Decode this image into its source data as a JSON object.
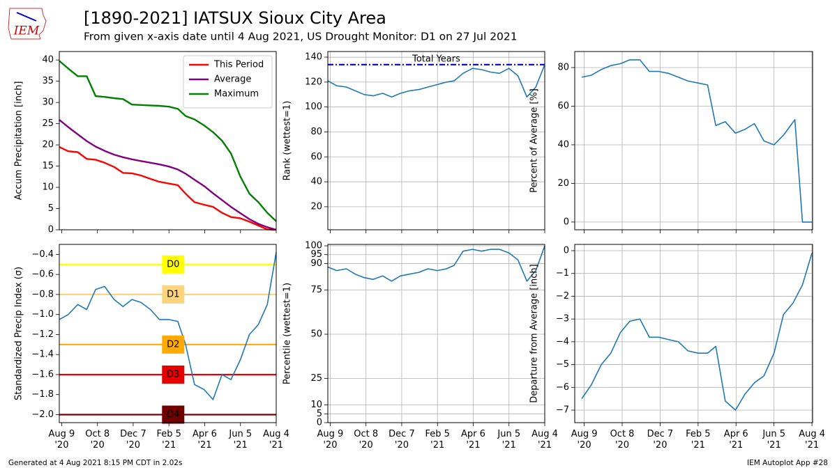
{
  "header": {
    "logo": "IEM",
    "title": "[1890-2021] IATSUX Sioux City Area",
    "subtitle": "From given x-axis date until 4 Aug 2021, US Drought Monitor: D1 on 27 Jul 2021"
  },
  "footer": {
    "left": "Generated at 4 Aug 2021 8:15 PM CDT in 2.02s",
    "right": "IEM Autoplot App #28"
  },
  "chart_data": [
    {
      "type": "line",
      "y_label": "Accum Precipitation [inch]",
      "grid": false,
      "legend": "upper right",
      "xlim": [
        "2020-08-05",
        "2021-08-04"
      ],
      "ylim": [
        0,
        42
      ],
      "xticks": [
        "2020-08-09",
        "2020-10-08",
        "2020-12-07",
        "2021-02-05",
        "2021-04-06",
        "2021-06-05",
        "2021-08-04"
      ],
      "yticks": [
        0,
        5,
        10,
        15,
        20,
        25,
        30,
        35,
        40
      ],
      "x": [
        "2020-08-05",
        "2020-08-20",
        "2020-09-05",
        "2020-09-20",
        "2020-10-05",
        "2020-10-20",
        "2020-11-05",
        "2020-11-20",
        "2020-12-05",
        "2020-12-20",
        "2021-01-05",
        "2021-01-20",
        "2021-02-05",
        "2021-02-20",
        "2021-03-05",
        "2021-03-20",
        "2021-04-05",
        "2021-04-20",
        "2021-05-05",
        "2021-05-20",
        "2021-06-05",
        "2021-06-20",
        "2021-07-05",
        "2021-07-20",
        "2021-08-04"
      ],
      "series": [
        {
          "name": "This Period",
          "color": "#ff0000",
          "values": [
            19.5,
            18.5,
            18.3,
            16.7,
            16.5,
            15.8,
            14.8,
            13.4,
            13.3,
            12.8,
            12.0,
            11.3,
            10.9,
            10.5,
            8.5,
            6.5,
            5.9,
            5.4,
            4.0,
            3.0,
            2.7,
            1.9,
            1.0,
            0.1,
            0
          ]
        },
        {
          "name": "Average",
          "color": "#800080",
          "values": [
            25.9,
            24.2,
            22.5,
            20.9,
            19.6,
            18.6,
            17.7,
            17.1,
            16.6,
            16.2,
            15.8,
            15.4,
            14.9,
            14.2,
            13.2,
            11.8,
            10.3,
            8.6,
            7.0,
            5.4,
            3.9,
            2.5,
            1.4,
            0.6,
            0
          ]
        },
        {
          "name": "Maximum",
          "color": "#008000",
          "values": [
            39.8,
            38.0,
            36.2,
            36.2,
            31.5,
            31.3,
            31.0,
            30.8,
            29.5,
            29.4,
            29.3,
            29.2,
            29.0,
            28.5,
            26.8,
            26.0,
            24.6,
            23.0,
            21.0,
            18.0,
            12.5,
            8.5,
            6.5,
            4.0,
            2.0
          ]
        }
      ]
    },
    {
      "type": "line",
      "y_label": "Rank (wettest=1)",
      "grid": true,
      "xlim": [
        "2020-08-05",
        "2021-08-04"
      ],
      "ylim": [
        1.5,
        144.5
      ],
      "xticks": [
        "2020-08-09",
        "2020-10-08",
        "2020-12-07",
        "2021-02-05",
        "2021-04-06",
        "2021-06-05",
        "2021-08-04"
      ],
      "yticks": [
        20,
        40,
        60,
        80,
        100,
        120,
        140
      ],
      "reference_lines": [
        {
          "value": 134,
          "label": "Total Years",
          "color": "#0000cc",
          "style": "dashdot",
          "text_color": "#000000"
        }
      ],
      "x": [
        "2020-08-05",
        "2020-08-20",
        "2020-09-05",
        "2020-09-20",
        "2020-10-05",
        "2020-10-20",
        "2020-11-05",
        "2020-11-20",
        "2020-12-05",
        "2020-12-20",
        "2021-01-05",
        "2021-01-20",
        "2021-02-05",
        "2021-02-20",
        "2021-03-05",
        "2021-03-20",
        "2021-04-05",
        "2021-04-20",
        "2021-05-05",
        "2021-05-20",
        "2021-06-05",
        "2021-06-20",
        "2021-07-05",
        "2021-07-20",
        "2021-08-04"
      ],
      "series": [
        {
          "color": "#1f77b4",
          "values": [
            121,
            117,
            116,
            113,
            110,
            109,
            111,
            108,
            111,
            113,
            114,
            116,
            118,
            120,
            121,
            127,
            131,
            130,
            128,
            127,
            131,
            125,
            108,
            116,
            134
          ]
        }
      ]
    },
    {
      "type": "line",
      "y_label": "Percent of Average [%]",
      "grid": true,
      "xlim": [
        "2020-07-25",
        "2021-08-05"
      ],
      "ylim": [
        -4,
        88.3
      ],
      "xticks": [
        "2020-08-09",
        "2020-10-08",
        "2020-12-07",
        "2021-02-05",
        "2021-04-06",
        "2021-06-05",
        "2021-08-04"
      ],
      "yticks": [
        0,
        20,
        40,
        60,
        80
      ],
      "x": [
        "2020-08-05",
        "2020-08-20",
        "2020-09-05",
        "2020-09-20",
        "2020-10-05",
        "2020-10-20",
        "2020-11-05",
        "2020-11-20",
        "2020-12-05",
        "2020-12-20",
        "2021-01-05",
        "2021-01-20",
        "2021-02-05",
        "2021-02-20",
        "2021-03-05",
        "2021-03-20",
        "2021-04-05",
        "2021-04-20",
        "2021-05-05",
        "2021-05-20",
        "2021-06-05",
        "2021-06-20",
        "2021-07-08",
        "2021-07-20",
        "2021-08-04"
      ],
      "series": [
        {
          "color": "#1f77b4",
          "values": [
            75,
            76,
            79,
            81,
            82,
            84,
            84,
            78,
            78,
            77,
            75,
            73,
            72,
            71,
            50,
            52,
            46,
            48,
            51,
            42,
            40,
            45,
            53,
            0,
            0
          ]
        }
      ]
    },
    {
      "type": "line",
      "y_label": "Standardized Precip Index (σ)",
      "grid": false,
      "xlim": [
        "2020-08-05",
        "2021-08-04"
      ],
      "ylim": [
        -2.08,
        -0.3
      ],
      "xticks": [
        {
          "value": "2020-08-09",
          "label": "Aug 9\n'20"
        },
        {
          "value": "2020-10-08",
          "label": "Oct 8\n'20"
        },
        {
          "value": "2020-12-07",
          "label": "Dec 7\n'20"
        },
        {
          "value": "2021-02-05",
          "label": "Feb 5\n'21"
        },
        {
          "value": "2021-04-06",
          "label": "Apr 6\n'21"
        },
        {
          "value": "2021-06-05",
          "label": "Jun 5\n'21"
        },
        {
          "value": "2021-08-04",
          "label": "Aug 4\n'21"
        }
      ],
      "yticks": [
        {
          "value": -2.0,
          "label": "−2.0"
        },
        {
          "value": -1.8,
          "label": "−1.8"
        },
        {
          "value": -1.6,
          "label": "−1.6"
        },
        {
          "value": -1.4,
          "label": "−1.4"
        },
        {
          "value": -1.2,
          "label": "−1.2"
        },
        {
          "value": -1.0,
          "label": "−1.0"
        },
        {
          "value": -0.8,
          "label": "−0.8"
        },
        {
          "value": -0.6,
          "label": "−0.6"
        },
        {
          "value": -0.4,
          "label": "−0.4"
        }
      ],
      "reference_lines": [
        {
          "value": -0.5,
          "label": "D0",
          "color": "#ffff00",
          "text_color": "#000000"
        },
        {
          "value": -0.8,
          "label": "D1",
          "color": "#fcd37f",
          "text_color": "#000000"
        },
        {
          "value": -1.3,
          "label": "D2",
          "color": "#ffaa00",
          "text_color": "#000000"
        },
        {
          "value": -1.6,
          "label": "D3",
          "color": "#e60000",
          "text_color": "#ffffff"
        },
        {
          "value": -2.0,
          "label": "D4",
          "color": "#730000",
          "text_color": "#ffffff"
        }
      ],
      "x": [
        "2020-08-05",
        "2020-08-20",
        "2020-09-05",
        "2020-09-20",
        "2020-10-05",
        "2020-10-20",
        "2020-11-05",
        "2020-11-20",
        "2020-12-05",
        "2020-12-20",
        "2021-01-05",
        "2021-01-20",
        "2021-02-05",
        "2021-02-20",
        "2021-03-05",
        "2021-03-20",
        "2021-04-05",
        "2021-04-20",
        "2021-05-05",
        "2021-05-20",
        "2021-06-05",
        "2021-06-20",
        "2021-07-05",
        "2021-07-20",
        "2021-08-04"
      ],
      "series": [
        {
          "color": "#1f77b4",
          "values": [
            -1.05,
            -1.0,
            -0.9,
            -0.95,
            -0.75,
            -0.72,
            -0.85,
            -0.92,
            -0.85,
            -0.88,
            -0.95,
            -1.05,
            -1.05,
            -1.07,
            -1.3,
            -1.7,
            -1.75,
            -1.85,
            -1.6,
            -1.65,
            -1.45,
            -1.2,
            -1.1,
            -0.9,
            -0.38
          ]
        }
      ]
    },
    {
      "type": "line",
      "y_label": "Percentile (wettest=1)",
      "grid": true,
      "xlim": [
        "2020-08-05",
        "2021-08-04"
      ],
      "ylim": [
        0,
        100.8
      ],
      "xticks": [
        {
          "value": "2020-08-09",
          "label": "Aug 9\n'20"
        },
        {
          "value": "2020-10-08",
          "label": "Oct 8\n'20"
        },
        {
          "value": "2020-12-07",
          "label": "Dec 7\n'20"
        },
        {
          "value": "2021-02-05",
          "label": "Feb 5\n'21"
        },
        {
          "value": "2021-04-06",
          "label": "Apr 6\n'21"
        },
        {
          "value": "2021-06-05",
          "label": "Jun 5\n'21"
        },
        {
          "value": "2021-08-04",
          "label": "Aug 4\n'21"
        }
      ],
      "yticks": [
        0,
        5,
        10,
        25,
        50,
        75,
        90,
        95,
        100
      ],
      "x": [
        "2020-08-05",
        "2020-08-20",
        "2020-09-05",
        "2020-09-20",
        "2020-10-05",
        "2020-10-20",
        "2020-11-05",
        "2020-11-20",
        "2020-12-05",
        "2020-12-20",
        "2021-01-05",
        "2021-01-20",
        "2021-02-05",
        "2021-02-20",
        "2021-03-05",
        "2021-03-20",
        "2021-04-05",
        "2021-04-20",
        "2021-05-05",
        "2021-05-20",
        "2021-06-05",
        "2021-06-20",
        "2021-07-05",
        "2021-07-20",
        "2021-08-04"
      ],
      "series": [
        {
          "color": "#1f77b4",
          "values": [
            88,
            86,
            87,
            84,
            82,
            81,
            83,
            80,
            83,
            84,
            85,
            87,
            86,
            87,
            89,
            97,
            98,
            97,
            98,
            98,
            96,
            92,
            80,
            86,
            100
          ]
        }
      ]
    },
    {
      "type": "line",
      "y_label": "Departure from Average [inch]",
      "grid": true,
      "xlim": [
        "2020-07-25",
        "2021-08-05"
      ],
      "ylim": [
        -7.55,
        0.275
      ],
      "xticks": [
        {
          "value": "2020-08-09",
          "label": "Aug 9\n'20"
        },
        {
          "value": "2020-10-08",
          "label": "Oct 8\n'20"
        },
        {
          "value": "2020-12-07",
          "label": "Dec 7\n'20"
        },
        {
          "value": "2021-02-05",
          "label": "Feb 5\n'21"
        },
        {
          "value": "2021-04-06",
          "label": "Apr 6\n'21"
        },
        {
          "value": "2021-06-05",
          "label": "Jun 5\n'21"
        },
        {
          "value": "2021-08-04",
          "label": "Aug 4\n'21"
        }
      ],
      "yticks": [
        {
          "value": -7,
          "label": "−7"
        },
        {
          "value": -6,
          "label": "−6"
        },
        {
          "value": -5,
          "label": "−5"
        },
        {
          "value": -4,
          "label": "−4"
        },
        {
          "value": -3,
          "label": "−3"
        },
        {
          "value": -2,
          "label": "−2"
        },
        {
          "value": -1,
          "label": "−1"
        },
        0
      ],
      "x": [
        "2020-08-05",
        "2020-08-20",
        "2020-09-05",
        "2020-09-20",
        "2020-10-05",
        "2020-10-20",
        "2020-11-05",
        "2020-11-20",
        "2020-12-05",
        "2020-12-20",
        "2021-01-05",
        "2021-01-20",
        "2021-02-05",
        "2021-02-20",
        "2021-03-05",
        "2021-03-20",
        "2021-04-05",
        "2021-04-20",
        "2021-05-05",
        "2021-05-20",
        "2021-06-05",
        "2021-06-20",
        "2021-07-05",
        "2021-07-20",
        "2021-08-04"
      ],
      "series": [
        {
          "color": "#1f77b4",
          "values": [
            -6.5,
            -5.9,
            -5.0,
            -4.5,
            -3.6,
            -3.1,
            -3.0,
            -3.8,
            -3.8,
            -3.9,
            -4.0,
            -4.4,
            -4.5,
            -4.5,
            -4.2,
            -6.6,
            -7.0,
            -6.3,
            -5.8,
            -5.5,
            -4.5,
            -2.8,
            -2.3,
            -1.5,
            -0.1
          ]
        }
      ]
    }
  ]
}
